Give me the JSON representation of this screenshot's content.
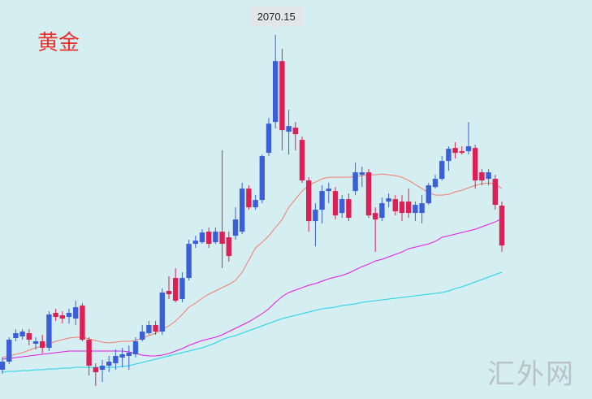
{
  "chart_data": {
    "type": "candlestick",
    "title": "黄金",
    "watermark": "汇外网",
    "up_color": "#3a5fd6",
    "down_color": "#dc1f55",
    "open": [
      1658,
      1668,
      1697,
      1699,
      1703,
      1690,
      1693,
      1685,
      1728,
      1725,
      1723,
      1721,
      1737,
      1695,
      1661,
      1658,
      1663,
      1666,
      1673,
      1675,
      1677,
      1695,
      1703,
      1713,
      1705,
      1755,
      1771,
      1745,
      1771,
      1813,
      1815,
      1828,
      1815,
      1828,
      1821,
      1823,
      1828,
      1881,
      1858,
      1867,
      1925,
      1963,
      2038,
      1951,
      1956,
      1941,
      1891,
      1841,
      1855,
      1878,
      1878,
      1851,
      1868,
      1878,
      1898,
      1901,
      1851,
      1845,
      1865,
      1868,
      1865,
      1865,
      1851,
      1851,
      1863,
      1883,
      1893,
      1915,
      1931,
      1927,
      1927,
      1931,
      1901,
      1893,
      1893,
      1860
    ],
    "high": [
      1673,
      1698,
      1708,
      1708,
      1708,
      1698,
      1701,
      1730,
      1733,
      1730,
      1733,
      1743,
      1740,
      1698,
      1666,
      1670,
      1675,
      1683,
      1685,
      1688,
      1698,
      1713,
      1718,
      1718,
      1758,
      1773,
      1783,
      1778,
      1818,
      1823,
      1831,
      1833,
      1833,
      1928,
      1828,
      1858,
      1888,
      1885,
      1873,
      1923,
      1968,
      2070.15,
      2053,
      1978,
      1963,
      1945,
      1895,
      1863,
      1885,
      1888,
      1883,
      1873,
      1875,
      1913,
      1908,
      1905,
      1858,
      1870,
      1875,
      1873,
      1873,
      1881,
      1865,
      1873,
      1888,
      1898,
      1921,
      1933,
      1938,
      1933,
      1963,
      1935,
      1905,
      1905,
      1898,
      1865
    ],
    "low": [
      1653,
      1665,
      1693,
      1695,
      1688,
      1683,
      1678,
      1681,
      1718,
      1715,
      1715,
      1713,
      1693,
      1651,
      1638,
      1643,
      1655,
      1658,
      1661,
      1658,
      1673,
      1693,
      1701,
      1701,
      1701,
      1745,
      1741,
      1741,
      1768,
      1808,
      1813,
      1808,
      1813,
      1783,
      1791,
      1818,
      1825,
      1855,
      1855,
      1863,
      1921,
      1955,
      1928,
      1923,
      1928,
      1888,
      1828,
      1810,
      1838,
      1863,
      1843,
      1845,
      1841,
      1873,
      1883,
      1845,
      1803,
      1841,
      1858,
      1848,
      1841,
      1845,
      1841,
      1838,
      1861,
      1881,
      1891,
      1903,
      1918,
      1923,
      1923,
      1881,
      1885,
      1885,
      1855,
      1803
    ],
    "close": [
      1668,
      1695,
      1703,
      1705,
      1695,
      1693,
      1685,
      1726,
      1723,
      1721,
      1728,
      1735,
      1695,
      1663,
      1655,
      1663,
      1668,
      1675,
      1677,
      1679,
      1693,
      1705,
      1713,
      1705,
      1753,
      1751,
      1743,
      1771,
      1813,
      1817,
      1827,
      1813,
      1828,
      1813,
      1798,
      1843,
      1881,
      1858,
      1867,
      1921,
      1961,
      2038,
      1953,
      1958,
      1948,
      1891,
      1841,
      1855,
      1878,
      1881,
      1848,
      1868,
      1845,
      1901,
      1901,
      1848,
      1843,
      1863,
      1869,
      1853,
      1851,
      1851,
      1861,
      1863,
      1885,
      1893,
      1915,
      1930,
      1925,
      1925,
      1933,
      1891,
      1891,
      1901,
      1861,
      1811
    ],
    "overlays": [
      {
        "color": "#f47c6c",
        "values": [
          1673,
          1675,
          1677,
          1679,
          1682,
          1685,
          1687,
          1690,
          1693,
          1695,
          1697,
          1698,
          1698,
          1696,
          1694,
          1692,
          1691,
          1692,
          1693,
          1693,
          1694,
          1697,
          1700,
          1703,
          1708,
          1712,
          1718,
          1726,
          1735,
          1740,
          1746,
          1751,
          1755,
          1759,
          1763,
          1768,
          1778,
          1793,
          1808,
          1815,
          1823,
          1833,
          1843,
          1858,
          1868,
          1878,
          1885,
          1889,
          1893,
          1895,
          1895,
          1895,
          1895,
          1896,
          1897,
          1898,
          1898,
          1899,
          1898,
          1897,
          1895,
          1891,
          1886,
          1881,
          1876,
          1873,
          1873,
          1874,
          1877,
          1879,
          1882,
          1885,
          1887,
          1888,
          1887,
          1881
        ]
      },
      {
        "color": "#e619e6",
        "values": [
          1671,
          1672,
          1673,
          1674,
          1675,
          1676,
          1677,
          1678,
          1679,
          1680,
          1681,
          1681,
          1681,
          1681,
          1681,
          1681,
          1681,
          1681,
          1681,
          1680,
          1678,
          1676,
          1675,
          1675,
          1676,
          1678,
          1681,
          1684,
          1688,
          1691,
          1694,
          1696,
          1698,
          1701,
          1705,
          1709,
          1713,
          1717,
          1722,
          1727,
          1733,
          1741,
          1748,
          1753,
          1756,
          1759,
          1762,
          1764,
          1767,
          1770,
          1772,
          1774,
          1777,
          1781,
          1785,
          1788,
          1792,
          1794,
          1797,
          1800,
          1803,
          1807,
          1809,
          1811,
          1813,
          1816,
          1821,
          1823,
          1825,
          1827,
          1829,
          1831,
          1834,
          1837,
          1840,
          1844
        ]
      },
      {
        "color": "#1ed2e6",
        "values": [
          1655,
          1656,
          1656,
          1657,
          1657,
          1658,
          1658,
          1659,
          1659,
          1660,
          1660,
          1661,
          1661,
          1661,
          1661,
          1661,
          1661,
          1661,
          1662,
          1663,
          1665,
          1667,
          1669,
          1671,
          1673,
          1675,
          1677,
          1679,
          1681,
          1683,
          1685,
          1688,
          1691,
          1695,
          1698,
          1700,
          1703,
          1706,
          1709,
          1712,
          1715,
          1718,
          1721,
          1723,
          1725,
          1727,
          1729,
          1731,
          1733,
          1734,
          1735,
          1737,
          1738,
          1739,
          1741,
          1742,
          1743,
          1744,
          1745,
          1746,
          1747,
          1748,
          1749,
          1750,
          1751,
          1752,
          1753,
          1755,
          1758,
          1760,
          1763,
          1766,
          1769,
          1772,
          1775,
          1778
        ]
      }
    ]
  }
}
